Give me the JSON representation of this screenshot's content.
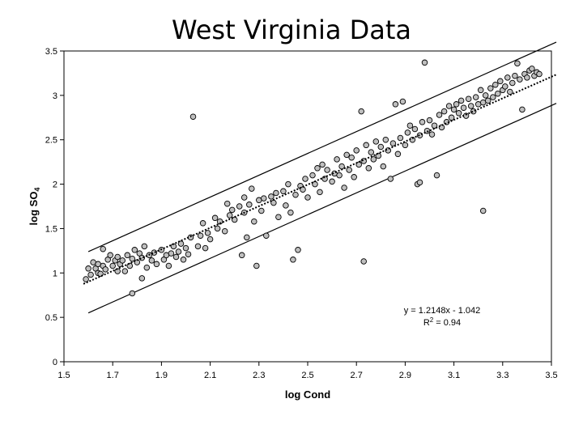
{
  "chart_data": {
    "type": "scatter",
    "title": "West Virginia Data",
    "xlabel": "log Cond",
    "ylabel": "log SO",
    "ylabel_sub": "4",
    "xlim": [
      1.5,
      3.5
    ],
    "ylim": [
      0,
      3.5
    ],
    "x_ticks": [
      "1.5",
      "1.7",
      "1.9",
      "2.1",
      "2.3",
      "2.5",
      "2.7",
      "2.9",
      "3.1",
      "3.3",
      "3.5"
    ],
    "y_ticks": [
      "0",
      "0.5",
      "1",
      "1.5",
      "2",
      "2.5",
      "3",
      "3.5"
    ],
    "grid": false,
    "marker_color": "#bfbfbf",
    "marker_edge": "#000000",
    "annotations": {
      "equation": "y = 1.2148x - 1.042",
      "r2_prefix": "R",
      "r2_sup": "2",
      "r2_suffix": " = 0.94"
    },
    "trendline": {
      "x": [
        1.58,
        3.52
      ],
      "y": [
        0.877,
        3.234
      ],
      "style": "dotted"
    },
    "upper_band": {
      "x": [
        1.6,
        3.52
      ],
      "y": [
        1.24,
        3.6
      ]
    },
    "lower_band": {
      "x": [
        1.6,
        3.52
      ],
      "y": [
        0.55,
        2.91
      ]
    },
    "points": [
      [
        1.59,
        0.93
      ],
      [
        1.6,
        1.05
      ],
      [
        1.61,
        0.98
      ],
      [
        1.62,
        1.12
      ],
      [
        1.63,
        1.05
      ],
      [
        1.64,
        1.0
      ],
      [
        1.64,
        1.1
      ],
      [
        1.65,
        0.99
      ],
      [
        1.66,
        1.08
      ],
      [
        1.66,
        1.27
      ],
      [
        1.67,
        1.04
      ],
      [
        1.68,
        1.15
      ],
      [
        1.69,
        1.2
      ],
      [
        1.7,
        1.08
      ],
      [
        1.71,
        1.14
      ],
      [
        1.72,
        1.02
      ],
      [
        1.72,
        1.18
      ],
      [
        1.73,
        1.1
      ],
      [
        1.74,
        1.14
      ],
      [
        1.75,
        1.02
      ],
      [
        1.76,
        1.2
      ],
      [
        1.77,
        1.08
      ],
      [
        1.78,
        1.16
      ],
      [
        1.78,
        0.77
      ],
      [
        1.79,
        1.26
      ],
      [
        1.8,
        1.12
      ],
      [
        1.81,
        1.22
      ],
      [
        1.82,
        0.94
      ],
      [
        1.82,
        1.17
      ],
      [
        1.83,
        1.3
      ],
      [
        1.84,
        1.06
      ],
      [
        1.85,
        1.2
      ],
      [
        1.86,
        1.14
      ],
      [
        1.87,
        1.23
      ],
      [
        1.88,
        1.1
      ],
      [
        1.9,
        1.26
      ],
      [
        1.91,
        1.15
      ],
      [
        1.92,
        1.2
      ],
      [
        1.93,
        1.08
      ],
      [
        1.94,
        1.22
      ],
      [
        1.95,
        1.3
      ],
      [
        1.96,
        1.18
      ],
      [
        1.97,
        1.24
      ],
      [
        1.98,
        1.33
      ],
      [
        1.99,
        1.15
      ],
      [
        2.0,
        1.28
      ],
      [
        2.01,
        1.21
      ],
      [
        2.02,
        1.4
      ],
      [
        2.03,
        2.76
      ],
      [
        2.05,
        1.3
      ],
      [
        2.06,
        1.42
      ],
      [
        2.07,
        1.56
      ],
      [
        2.08,
        1.28
      ],
      [
        2.09,
        1.45
      ],
      [
        2.1,
        1.38
      ],
      [
        2.12,
        1.62
      ],
      [
        2.13,
        1.5
      ],
      [
        2.14,
        1.58
      ],
      [
        2.16,
        1.47
      ],
      [
        2.17,
        1.78
      ],
      [
        2.18,
        1.65
      ],
      [
        2.19,
        1.71
      ],
      [
        2.2,
        1.6
      ],
      [
        2.22,
        1.75
      ],
      [
        2.23,
        1.2
      ],
      [
        2.24,
        1.68
      ],
      [
        2.24,
        1.85
      ],
      [
        2.25,
        1.4
      ],
      [
        2.26,
        1.77
      ],
      [
        2.27,
        1.95
      ],
      [
        2.28,
        1.58
      ],
      [
        2.29,
        1.08
      ],
      [
        2.3,
        1.82
      ],
      [
        2.31,
        1.7
      ],
      [
        2.32,
        1.84
      ],
      [
        2.33,
        1.42
      ],
      [
        2.35,
        1.86
      ],
      [
        2.36,
        1.79
      ],
      [
        2.37,
        1.9
      ],
      [
        2.38,
        1.63
      ],
      [
        2.4,
        1.92
      ],
      [
        2.41,
        1.76
      ],
      [
        2.42,
        2.0
      ],
      [
        2.43,
        1.68
      ],
      [
        2.44,
        1.15
      ],
      [
        2.45,
        1.88
      ],
      [
        2.46,
        1.26
      ],
      [
        2.47,
        1.98
      ],
      [
        2.48,
        1.94
      ],
      [
        2.49,
        2.06
      ],
      [
        2.5,
        1.85
      ],
      [
        2.52,
        2.1
      ],
      [
        2.53,
        2.0
      ],
      [
        2.54,
        2.18
      ],
      [
        2.55,
        1.91
      ],
      [
        2.56,
        2.22
      ],
      [
        2.57,
        2.06
      ],
      [
        2.58,
        2.16
      ],
      [
        2.6,
        2.03
      ],
      [
        2.61,
        2.12
      ],
      [
        2.62,
        2.28
      ],
      [
        2.63,
        2.1
      ],
      [
        2.64,
        2.2
      ],
      [
        2.65,
        1.96
      ],
      [
        2.66,
        2.33
      ],
      [
        2.67,
        2.16
      ],
      [
        2.68,
        2.3
      ],
      [
        2.69,
        2.08
      ],
      [
        2.7,
        2.38
      ],
      [
        2.71,
        2.22
      ],
      [
        2.72,
        2.82
      ],
      [
        2.73,
        2.26
      ],
      [
        2.73,
        1.13
      ],
      [
        2.74,
        2.44
      ],
      [
        2.75,
        2.18
      ],
      [
        2.76,
        2.36
      ],
      [
        2.77,
        2.28
      ],
      [
        2.78,
        2.48
      ],
      [
        2.79,
        2.32
      ],
      [
        2.8,
        2.42
      ],
      [
        2.81,
        2.2
      ],
      [
        2.82,
        2.5
      ],
      [
        2.83,
        2.38
      ],
      [
        2.84,
        2.06
      ],
      [
        2.85,
        2.46
      ],
      [
        2.86,
        2.9
      ],
      [
        2.87,
        2.34
      ],
      [
        2.88,
        2.52
      ],
      [
        2.89,
        2.93
      ],
      [
        2.9,
        2.44
      ],
      [
        2.91,
        2.58
      ],
      [
        2.92,
        2.66
      ],
      [
        2.93,
        2.5
      ],
      [
        2.94,
        2.62
      ],
      [
        2.95,
        2.0
      ],
      [
        2.96,
        2.55
      ],
      [
        2.96,
        2.02
      ],
      [
        2.97,
        2.7
      ],
      [
        2.98,
        3.37
      ],
      [
        2.99,
        2.6
      ],
      [
        3.0,
        2.72
      ],
      [
        3.01,
        2.56
      ],
      [
        3.02,
        2.66
      ],
      [
        3.03,
        2.1
      ],
      [
        3.04,
        2.78
      ],
      [
        3.05,
        2.64
      ],
      [
        3.06,
        2.82
      ],
      [
        3.07,
        2.7
      ],
      [
        3.08,
        2.88
      ],
      [
        3.09,
        2.75
      ],
      [
        3.1,
        2.84
      ],
      [
        3.11,
        2.9
      ],
      [
        3.12,
        2.8
      ],
      [
        3.13,
        2.94
      ],
      [
        3.14,
        2.86
      ],
      [
        3.15,
        2.77
      ],
      [
        3.16,
        2.96
      ],
      [
        3.17,
        2.88
      ],
      [
        3.18,
        2.82
      ],
      [
        3.19,
        2.98
      ],
      [
        3.2,
        2.9
      ],
      [
        3.21,
        3.06
      ],
      [
        3.22,
        1.7
      ],
      [
        3.22,
        2.92
      ],
      [
        3.23,
        3.0
      ],
      [
        3.24,
        2.94
      ],
      [
        3.25,
        3.08
      ],
      [
        3.26,
        2.98
      ],
      [
        3.27,
        3.12
      ],
      [
        3.28,
        3.02
      ],
      [
        3.29,
        3.16
      ],
      [
        3.3,
        3.06
      ],
      [
        3.31,
        3.1
      ],
      [
        3.32,
        3.2
      ],
      [
        3.33,
        3.04
      ],
      [
        3.34,
        3.14
      ],
      [
        3.35,
        3.22
      ],
      [
        3.36,
        3.36
      ],
      [
        3.37,
        3.18
      ],
      [
        3.38,
        2.84
      ],
      [
        3.39,
        3.24
      ],
      [
        3.4,
        3.2
      ],
      [
        3.41,
        3.28
      ],
      [
        3.42,
        3.3
      ],
      [
        3.43,
        3.22
      ],
      [
        3.44,
        3.26
      ],
      [
        3.45,
        3.24
      ]
    ]
  }
}
